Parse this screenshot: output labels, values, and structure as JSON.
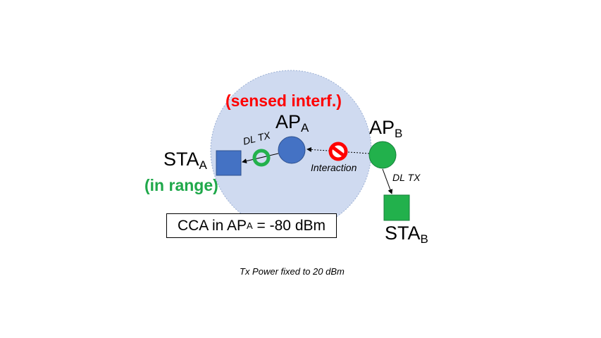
{
  "labels": {
    "sensed_note": "(sensed interf.)",
    "ap_a": "AP",
    "ap_a_sub": "A",
    "ap_b": "AP",
    "ap_b_sub": "B",
    "sta_a": "STA",
    "sta_a_sub": "A",
    "sta_b": "STA",
    "sta_b_sub": "B",
    "in_range_note": "(in range)",
    "dl_tx_a": "DL TX",
    "dl_tx_b": "DL TX",
    "interaction": "Interaction",
    "cca_prefix": "CCA in AP",
    "cca_sub": "A",
    "cca_suffix": " = -80 dBm",
    "footer": "Tx Power fixed to 20 dBm"
  },
  "colors": {
    "coverage_fill": "#cfdaf0",
    "ap_a_fill": "#4472c4",
    "sta_a_fill": "#4472c4",
    "ap_b_fill": "#22b14c",
    "sta_b_fill": "#22b14c",
    "ok_symbol": "#22b14c",
    "blocked_symbol": "#ff0000",
    "sensed_text": "#ff0000",
    "in_range_text": "#1fa84a"
  },
  "icons": {
    "ok_symbol": "green-ring-icon",
    "blocked_symbol": "red-prohibited-icon"
  }
}
